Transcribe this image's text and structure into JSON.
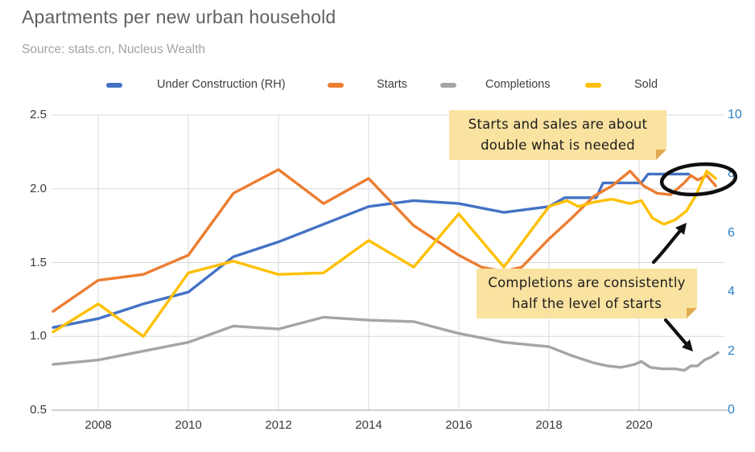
{
  "header": {
    "title": "Apartments per new urban household",
    "source": "Source: stats.cn, Nucleus Wealth"
  },
  "chart_data": {
    "type": "line",
    "title": "Apartments per new urban household",
    "legend_position": "top",
    "grid": true,
    "x_axis": {
      "range": [
        2007,
        2021.8
      ],
      "tick_values": [
        2008,
        2010,
        2012,
        2014,
        2016,
        2018,
        2020
      ],
      "tick_labels": [
        "2008",
        "2010",
        "2012",
        "2014",
        "2016",
        "2018",
        "2020"
      ]
    },
    "left_axis": {
      "range": [
        0.5,
        2.5
      ],
      "tick_values": [
        2.5,
        2.0,
        1.5,
        1.0,
        0.5
      ],
      "tick_labels": [
        "2.5",
        "2.0",
        "1.5",
        "1.0",
        "0.5"
      ],
      "color": "#3a3a3a"
    },
    "right_axis": {
      "range": [
        0,
        10
      ],
      "tick_values": [
        10,
        8,
        6,
        4,
        2,
        0
      ],
      "tick_labels": [
        "10",
        "8",
        "6",
        "4",
        "2",
        "0"
      ],
      "color": "#2e81c4"
    },
    "series": [
      {
        "name": "Under Construction (RH)",
        "color": "#4472c4",
        "axis": "right",
        "points": [
          [
            2007,
            2.8
          ],
          [
            2008,
            3.1
          ],
          [
            2009,
            3.6
          ],
          [
            2010,
            4.0
          ],
          [
            2011,
            5.2
          ],
          [
            2012,
            5.7
          ],
          [
            2013,
            6.3
          ],
          [
            2014,
            6.9
          ],
          [
            2015,
            7.1
          ],
          [
            2016,
            7.0
          ],
          [
            2017,
            6.7
          ],
          [
            2018,
            6.9
          ],
          [
            2018.35,
            7.2
          ],
          [
            2019.05,
            7.2
          ],
          [
            2019.2,
            7.7
          ],
          [
            2020.05,
            7.7
          ],
          [
            2020.2,
            8.0
          ],
          [
            2021.1,
            8.0
          ]
        ]
      },
      {
        "name": "Starts",
        "color": "#ed7d31",
        "axis": "left",
        "points": [
          [
            2007,
            1.17
          ],
          [
            2008,
            1.38
          ],
          [
            2009,
            1.42
          ],
          [
            2010,
            1.55
          ],
          [
            2011,
            1.97
          ],
          [
            2012,
            2.13
          ],
          [
            2013,
            1.9
          ],
          [
            2014,
            2.07
          ],
          [
            2015,
            1.75
          ],
          [
            2016,
            1.55
          ],
          [
            2016.5,
            1.47
          ],
          [
            2017,
            1.44
          ],
          [
            2017.4,
            1.47
          ],
          [
            2018,
            1.66
          ],
          [
            2018.5,
            1.8
          ],
          [
            2019,
            1.95
          ],
          [
            2019.4,
            2.02
          ],
          [
            2019.8,
            2.12
          ],
          [
            2020.1,
            2.02
          ],
          [
            2020.4,
            1.97
          ],
          [
            2020.7,
            1.96
          ],
          [
            2021,
            2.04
          ],
          [
            2021.15,
            2.09
          ],
          [
            2021.3,
            2.06
          ],
          [
            2021.5,
            2.09
          ],
          [
            2021.7,
            2.02
          ]
        ]
      },
      {
        "name": "Completions",
        "color": "#a5a5a5",
        "axis": "left",
        "points": [
          [
            2007,
            0.81
          ],
          [
            2008,
            0.84
          ],
          [
            2009,
            0.9
          ],
          [
            2010,
            0.96
          ],
          [
            2011,
            1.07
          ],
          [
            2012,
            1.05
          ],
          [
            2013,
            1.13
          ],
          [
            2014,
            1.11
          ],
          [
            2015,
            1.1
          ],
          [
            2016,
            1.02
          ],
          [
            2017,
            0.96
          ],
          [
            2018,
            0.93
          ],
          [
            2018.5,
            0.87
          ],
          [
            2019,
            0.82
          ],
          [
            2019.3,
            0.8
          ],
          [
            2019.6,
            0.79
          ],
          [
            2019.9,
            0.81
          ],
          [
            2020.05,
            0.83
          ],
          [
            2020.25,
            0.79
          ],
          [
            2020.5,
            0.78
          ],
          [
            2020.8,
            0.78
          ],
          [
            2021.0,
            0.77
          ],
          [
            2021.15,
            0.8
          ],
          [
            2021.3,
            0.8
          ],
          [
            2021.45,
            0.84
          ],
          [
            2021.6,
            0.86
          ],
          [
            2021.75,
            0.89
          ]
        ]
      },
      {
        "name": "Sold",
        "color": "#ffc000",
        "axis": "left",
        "points": [
          [
            2007,
            1.03
          ],
          [
            2008,
            1.22
          ],
          [
            2009,
            1.0
          ],
          [
            2010,
            1.43
          ],
          [
            2011,
            1.51
          ],
          [
            2012,
            1.42
          ],
          [
            2013,
            1.43
          ],
          [
            2014,
            1.65
          ],
          [
            2015,
            1.47
          ],
          [
            2016,
            1.83
          ],
          [
            2017,
            1.47
          ],
          [
            2018,
            1.88
          ],
          [
            2018.4,
            1.92
          ],
          [
            2018.65,
            1.88
          ],
          [
            2019,
            1.91
          ],
          [
            2019.4,
            1.93
          ],
          [
            2019.8,
            1.9
          ],
          [
            2020.05,
            1.92
          ],
          [
            2020.3,
            1.8
          ],
          [
            2020.55,
            1.76
          ],
          [
            2020.8,
            1.79
          ],
          [
            2021.05,
            1.85
          ],
          [
            2021.25,
            1.95
          ],
          [
            2021.5,
            2.12
          ],
          [
            2021.7,
            2.07
          ]
        ]
      }
    ],
    "annotations": {
      "note1": {
        "line1": "Starts and sales are about",
        "line2": "double what is needed"
      },
      "note2": {
        "line1": "Completions are consistently",
        "line2": "half the level of starts"
      },
      "note_bg_color": "#fae2a0",
      "shapes": [
        "ellipse-highlight-late-2021",
        "arrow-to-sold-line",
        "arrow-to-completions-line"
      ]
    }
  }
}
